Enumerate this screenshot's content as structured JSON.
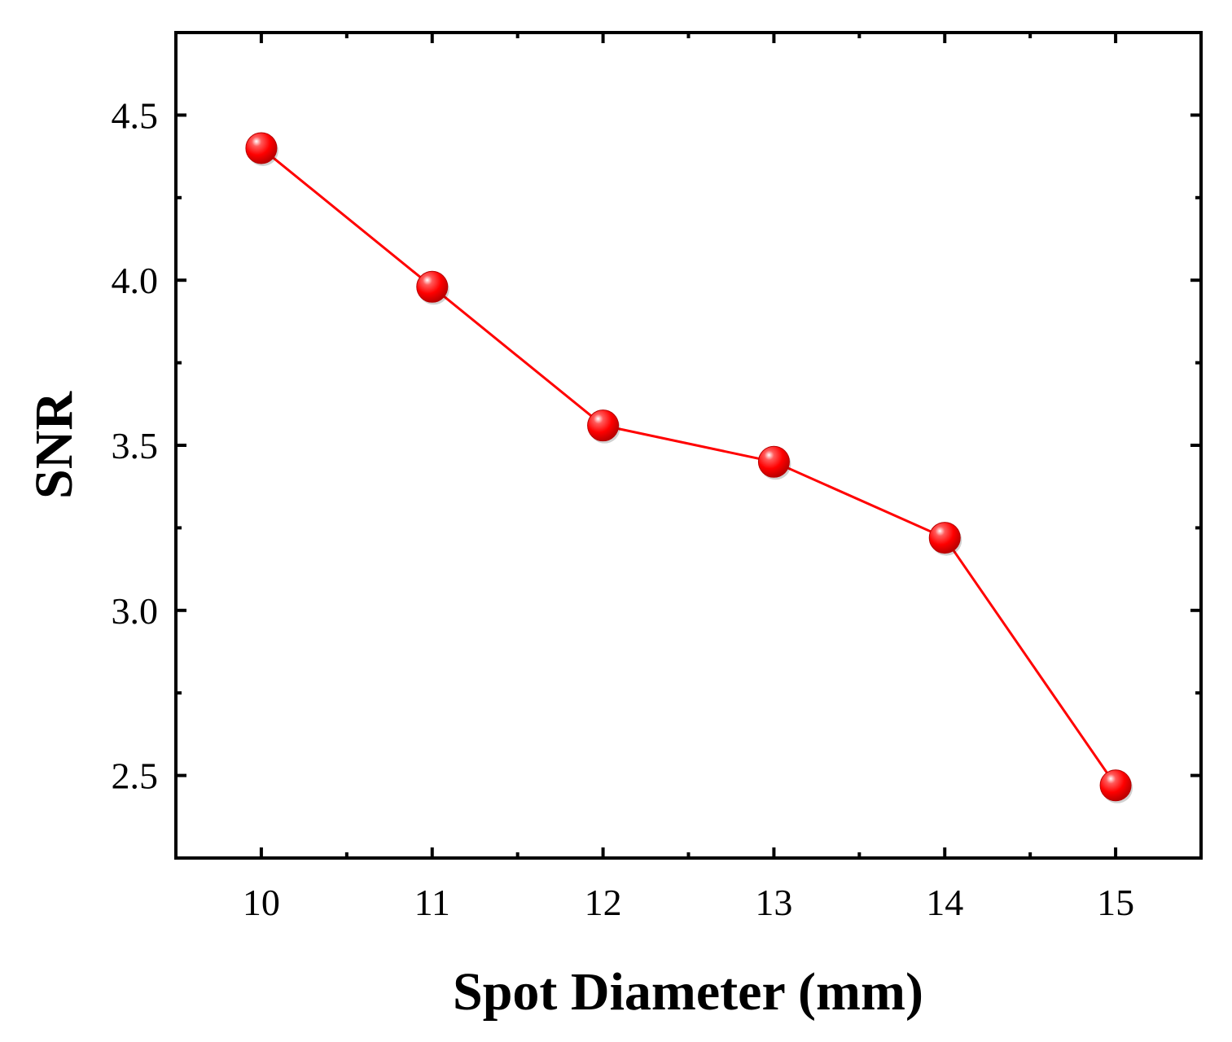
{
  "colors": {
    "series": "#ff0000",
    "marker_dark": "#b80000",
    "marker_highlight": "#ffffff",
    "axis": "#000000",
    "background": "#ffffff"
  },
  "chart_data": {
    "type": "line",
    "title": "",
    "xlabel": "Spot Diameter (mm)",
    "ylabel": "SNR",
    "x": [
      10,
      11,
      12,
      13,
      14,
      15
    ],
    "series": [
      {
        "name": "",
        "values": [
          4.4,
          3.98,
          3.56,
          3.45,
          3.22,
          2.47
        ],
        "marker": "sphere",
        "color": "#ff0000"
      }
    ],
    "xlim": [
      9.5,
      15.5
    ],
    "ylim": [
      2.25,
      4.75
    ],
    "x_ticks": [
      10,
      11,
      12,
      13,
      14,
      15
    ],
    "x_tick_labels": [
      "10",
      "11",
      "12",
      "13",
      "14",
      "15"
    ],
    "x_minor_ticks": [
      10.5,
      11.5,
      12.5,
      13.5,
      14.5
    ],
    "y_ticks": [
      2.5,
      3.0,
      3.5,
      4.0,
      4.5
    ],
    "y_tick_labels": [
      "2.5",
      "3.0",
      "3.5",
      "4.0",
      "4.5"
    ],
    "y_minor_ticks": [
      2.75,
      3.25,
      3.75,
      4.25
    ],
    "grid": false,
    "legend": "none",
    "tick_direction": "in",
    "mirror_ticks": true
  }
}
